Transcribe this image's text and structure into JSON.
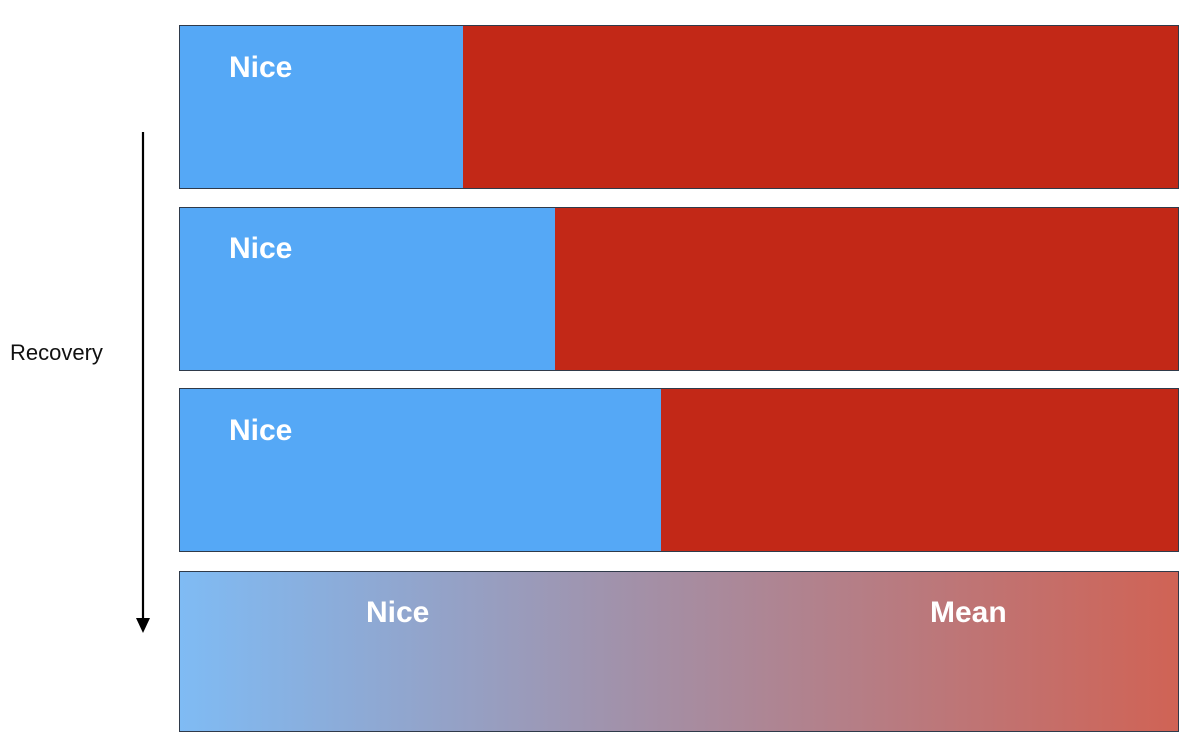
{
  "colors": {
    "nice": "#55a8f6",
    "mean": "#c22817",
    "gradient_start": "#7fbbf4",
    "gradient_mid": "#a291a9",
    "gradient_end": "#d06355"
  },
  "axis": {
    "label": "Recovery",
    "direction_icon": "arrow-down-icon"
  },
  "bars": [
    {
      "nice_label": "Nice",
      "nice_fraction": 0.284
    },
    {
      "nice_label": "Nice",
      "nice_fraction": 0.376
    },
    {
      "nice_label": "Nice",
      "nice_fraction": 0.482
    }
  ],
  "blend": {
    "nice_label": "Nice",
    "mean_label": "Mean"
  }
}
